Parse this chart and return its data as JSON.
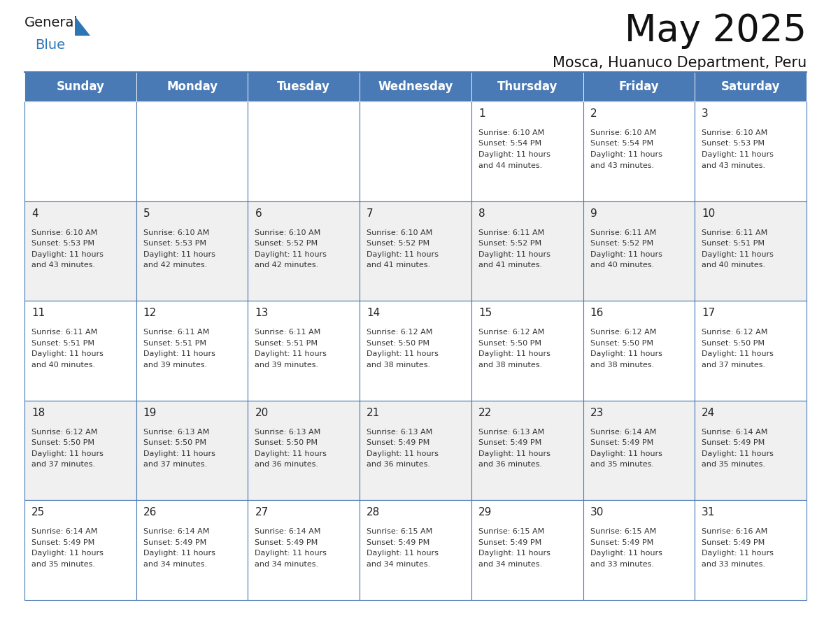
{
  "title": "May 2025",
  "subtitle": "Mosca, Huanuco Department, Peru",
  "header_color": "#4a7ab5",
  "header_text_color": "#ffffff",
  "days_of_week": [
    "Sunday",
    "Monday",
    "Tuesday",
    "Wednesday",
    "Thursday",
    "Friday",
    "Saturday"
  ],
  "background_color": "#ffffff",
  "cell_bg_even": "#f0f0f0",
  "cell_bg_odd": "#ffffff",
  "grid_line_color": "#4a7ab5",
  "day_number_color": "#222222",
  "cell_text_color": "#333333",
  "logo_general_color": "#1a1a1a",
  "logo_blue_color": "#2e75b6",
  "logo_triangle_color": "#2e75b6",
  "calendar_data": [
    [
      null,
      null,
      null,
      null,
      {
        "day": 1,
        "sunrise": "6:10 AM",
        "sunset": "5:54 PM",
        "daylight": "11 hours and 44 minutes."
      },
      {
        "day": 2,
        "sunrise": "6:10 AM",
        "sunset": "5:54 PM",
        "daylight": "11 hours and 43 minutes."
      },
      {
        "day": 3,
        "sunrise": "6:10 AM",
        "sunset": "5:53 PM",
        "daylight": "11 hours and 43 minutes."
      }
    ],
    [
      {
        "day": 4,
        "sunrise": "6:10 AM",
        "sunset": "5:53 PM",
        "daylight": "11 hours and 43 minutes."
      },
      {
        "day": 5,
        "sunrise": "6:10 AM",
        "sunset": "5:53 PM",
        "daylight": "11 hours and 42 minutes."
      },
      {
        "day": 6,
        "sunrise": "6:10 AM",
        "sunset": "5:52 PM",
        "daylight": "11 hours and 42 minutes."
      },
      {
        "day": 7,
        "sunrise": "6:10 AM",
        "sunset": "5:52 PM",
        "daylight": "11 hours and 41 minutes."
      },
      {
        "day": 8,
        "sunrise": "6:11 AM",
        "sunset": "5:52 PM",
        "daylight": "11 hours and 41 minutes."
      },
      {
        "day": 9,
        "sunrise": "6:11 AM",
        "sunset": "5:52 PM",
        "daylight": "11 hours and 40 minutes."
      },
      {
        "day": 10,
        "sunrise": "6:11 AM",
        "sunset": "5:51 PM",
        "daylight": "11 hours and 40 minutes."
      }
    ],
    [
      {
        "day": 11,
        "sunrise": "6:11 AM",
        "sunset": "5:51 PM",
        "daylight": "11 hours and 40 minutes."
      },
      {
        "day": 12,
        "sunrise": "6:11 AM",
        "sunset": "5:51 PM",
        "daylight": "11 hours and 39 minutes."
      },
      {
        "day": 13,
        "sunrise": "6:11 AM",
        "sunset": "5:51 PM",
        "daylight": "11 hours and 39 minutes."
      },
      {
        "day": 14,
        "sunrise": "6:12 AM",
        "sunset": "5:50 PM",
        "daylight": "11 hours and 38 minutes."
      },
      {
        "day": 15,
        "sunrise": "6:12 AM",
        "sunset": "5:50 PM",
        "daylight": "11 hours and 38 minutes."
      },
      {
        "day": 16,
        "sunrise": "6:12 AM",
        "sunset": "5:50 PM",
        "daylight": "11 hours and 38 minutes."
      },
      {
        "day": 17,
        "sunrise": "6:12 AM",
        "sunset": "5:50 PM",
        "daylight": "11 hours and 37 minutes."
      }
    ],
    [
      {
        "day": 18,
        "sunrise": "6:12 AM",
        "sunset": "5:50 PM",
        "daylight": "11 hours and 37 minutes."
      },
      {
        "day": 19,
        "sunrise": "6:13 AM",
        "sunset": "5:50 PM",
        "daylight": "11 hours and 37 minutes."
      },
      {
        "day": 20,
        "sunrise": "6:13 AM",
        "sunset": "5:50 PM",
        "daylight": "11 hours and 36 minutes."
      },
      {
        "day": 21,
        "sunrise": "6:13 AM",
        "sunset": "5:49 PM",
        "daylight": "11 hours and 36 minutes."
      },
      {
        "day": 22,
        "sunrise": "6:13 AM",
        "sunset": "5:49 PM",
        "daylight": "11 hours and 36 minutes."
      },
      {
        "day": 23,
        "sunrise": "6:14 AM",
        "sunset": "5:49 PM",
        "daylight": "11 hours and 35 minutes."
      },
      {
        "day": 24,
        "sunrise": "6:14 AM",
        "sunset": "5:49 PM",
        "daylight": "11 hours and 35 minutes."
      }
    ],
    [
      {
        "day": 25,
        "sunrise": "6:14 AM",
        "sunset": "5:49 PM",
        "daylight": "11 hours and 35 minutes."
      },
      {
        "day": 26,
        "sunrise": "6:14 AM",
        "sunset": "5:49 PM",
        "daylight": "11 hours and 34 minutes."
      },
      {
        "day": 27,
        "sunrise": "6:14 AM",
        "sunset": "5:49 PM",
        "daylight": "11 hours and 34 minutes."
      },
      {
        "day": 28,
        "sunrise": "6:15 AM",
        "sunset": "5:49 PM",
        "daylight": "11 hours and 34 minutes."
      },
      {
        "day": 29,
        "sunrise": "6:15 AM",
        "sunset": "5:49 PM",
        "daylight": "11 hours and 34 minutes."
      },
      {
        "day": 30,
        "sunrise": "6:15 AM",
        "sunset": "5:49 PM",
        "daylight": "11 hours and 33 minutes."
      },
      {
        "day": 31,
        "sunrise": "6:16 AM",
        "sunset": "5:49 PM",
        "daylight": "11 hours and 33 minutes."
      }
    ]
  ]
}
